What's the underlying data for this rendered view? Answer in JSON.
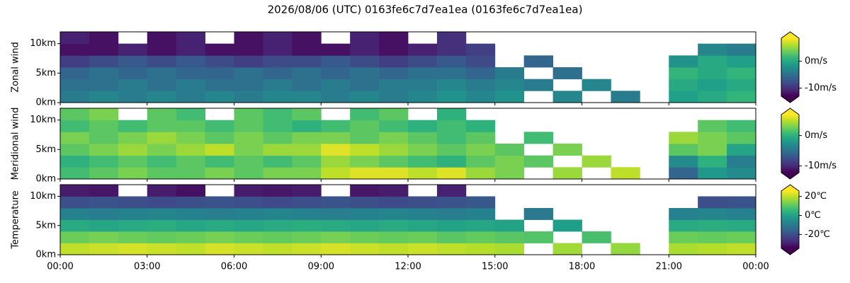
{
  "title": "2026/08/06 (UTC) 0163fe6c7d7ea1ea (0163fe6c7d7ea1ea)",
  "x": [
    0.5,
    1.5,
    2.5,
    3.5,
    4.5,
    5.5,
    6.5,
    7.5,
    8.5,
    9.5,
    10.5,
    11.5,
    12.5,
    13.5,
    14.5,
    15.5,
    16.5,
    17.5,
    18.5,
    19.5,
    20.5,
    21.5,
    22.5,
    23.5
  ],
  "xlim": [
    0,
    24
  ],
  "xticks": [
    {
      "value": 0,
      "label": "00:00"
    },
    {
      "value": 3,
      "label": "03:00"
    },
    {
      "value": 6,
      "label": "06:00"
    },
    {
      "value": 9,
      "label": "09:00"
    },
    {
      "value": 12,
      "label": "12:00"
    },
    {
      "value": 15,
      "label": "15:00"
    },
    {
      "value": 18,
      "label": "18:00"
    },
    {
      "value": 21,
      "label": "21:00"
    },
    {
      "value": 24,
      "label": "00:00"
    }
  ],
  "chart_data": [
    {
      "type": "heatmap",
      "ylabel": "Zonal wind",
      "colormap": "viridis",
      "y": [
        1,
        3,
        5,
        7,
        9,
        11
      ],
      "ylim": [
        0,
        12
      ],
      "yticks": [
        {
          "value": 0,
          "label": "0km"
        },
        {
          "value": 5,
          "label": "5km"
        },
        {
          "value": 10,
          "label": "10km"
        }
      ],
      "clim": [
        -13,
        8.5
      ],
      "cticks": [
        {
          "value": 0,
          "label": "0m/s"
        },
        {
          "value": -10,
          "label": "-10m/s"
        }
      ],
      "values": [
        [
          -4,
          -3,
          -4,
          -3,
          -4,
          -3,
          -4,
          -3,
          -3,
          -4,
          -3,
          -4,
          -3,
          -2,
          -3,
          -2,
          null,
          -3,
          null,
          -4,
          null,
          -1,
          0,
          1
        ],
        [
          -5,
          -5,
          -4,
          -5,
          -4,
          -5,
          -5,
          -4,
          -5,
          -4,
          -5,
          -4,
          -4,
          -3,
          -4,
          -3,
          -4,
          null,
          -3,
          null,
          null,
          0,
          -1,
          0
        ],
        [
          -6,
          -5,
          -6,
          -5,
          -6,
          -6,
          -5,
          -6,
          -5,
          -6,
          -5,
          -6,
          -5,
          -5,
          -6,
          -4,
          null,
          -5,
          null,
          null,
          null,
          1,
          0,
          1
        ],
        [
          -9,
          -8,
          -7,
          -8,
          -7,
          -8,
          -9,
          -8,
          -8,
          -7,
          -8,
          -9,
          -8,
          -7,
          -8,
          null,
          -6,
          null,
          null,
          null,
          null,
          -2,
          0,
          -1
        ],
        [
          -12,
          -12,
          -11,
          -12,
          -11,
          -12,
          -12,
          -11,
          -12,
          -12,
          -11,
          -12,
          -11,
          -10,
          -9,
          null,
          null,
          null,
          null,
          null,
          null,
          null,
          -3,
          -4
        ],
        [
          -11,
          -12,
          null,
          -12,
          -11,
          null,
          -12,
          -11,
          -12,
          null,
          -11,
          -12,
          null,
          -10,
          null,
          null,
          null,
          null,
          null,
          null,
          null,
          null,
          null,
          null
        ]
      ]
    },
    {
      "type": "heatmap",
      "ylabel": "Meridional wind",
      "colormap": "viridis",
      "y": [
        1,
        3,
        5,
        7,
        9,
        11
      ],
      "ylim": [
        0,
        12
      ],
      "yticks": [
        {
          "value": 0,
          "label": "0km"
        },
        {
          "value": 5,
          "label": "5km"
        },
        {
          "value": 10,
          "label": "10km"
        }
      ],
      "clim": [
        -12.2,
        6.9
      ],
      "cticks": [
        {
          "value": 0,
          "label": "0m/s"
        },
        {
          "value": -10,
          "label": "-10m/s"
        }
      ],
      "values": [
        [
          1,
          2,
          3,
          2,
          2,
          3,
          2,
          3,
          3,
          5,
          6,
          6,
          5,
          6,
          4,
          3,
          null,
          4,
          null,
          5,
          null,
          -6,
          -2,
          -3
        ],
        [
          0,
          1,
          2,
          1,
          2,
          1,
          2,
          1,
          2,
          4,
          3,
          2,
          1,
          0,
          2,
          3,
          2,
          null,
          4,
          null,
          null,
          -3,
          0,
          -4
        ],
        [
          2,
          3,
          4,
          3,
          4,
          5,
          3,
          4,
          4,
          6,
          5,
          4,
          3,
          2,
          3,
          2,
          null,
          3,
          null,
          null,
          null,
          2,
          3,
          -1
        ],
        [
          3,
          2,
          3,
          4,
          3,
          2,
          3,
          2,
          3,
          3,
          2,
          3,
          2,
          1,
          2,
          null,
          1,
          null,
          null,
          null,
          null,
          4,
          3,
          2
        ],
        [
          1,
          2,
          1,
          2,
          2,
          1,
          2,
          1,
          0,
          1,
          2,
          1,
          0,
          1,
          0,
          null,
          null,
          null,
          null,
          null,
          null,
          null,
          2,
          1
        ],
        [
          2,
          3,
          null,
          2,
          1,
          null,
          2,
          1,
          2,
          null,
          1,
          2,
          null,
          0,
          null,
          null,
          null,
          null,
          null,
          null,
          null,
          null,
          null,
          null
        ]
      ]
    },
    {
      "type": "heatmap",
      "ylabel": "Temperature",
      "colormap": "viridis",
      "y": [
        1,
        3,
        5,
        7,
        9,
        11
      ],
      "ylim": [
        0,
        12
      ],
      "yticks": [
        {
          "value": 0,
          "label": "0km"
        },
        {
          "value": 5,
          "label": "5km"
        },
        {
          "value": 10,
          "label": "10km"
        }
      ],
      "clim": [
        -34.6,
        25.7
      ],
      "cticks": [
        {
          "value": 20,
          "label": "20℃"
        },
        {
          "value": 0,
          "label": "0℃"
        },
        {
          "value": -20,
          "label": "-20℃"
        }
      ],
      "values": [
        [
          20,
          21,
          22,
          21,
          20,
          22,
          21,
          20,
          21,
          22,
          21,
          20,
          21,
          20,
          19,
          18,
          null,
          17,
          null,
          16,
          null,
          18,
          19,
          20
        ],
        [
          12,
          13,
          12,
          11,
          12,
          13,
          12,
          11,
          12,
          13,
          12,
          11,
          12,
          10,
          11,
          10,
          9,
          null,
          8,
          null,
          null,
          12,
          11,
          12
        ],
        [
          2,
          1,
          2,
          3,
          1,
          2,
          1,
          2,
          3,
          2,
          1,
          2,
          1,
          0,
          1,
          0,
          null,
          -1,
          null,
          null,
          null,
          2,
          3,
          2
        ],
        [
          -8,
          -9,
          -8,
          -7,
          -8,
          -9,
          -8,
          -7,
          -8,
          -9,
          -8,
          -7,
          -8,
          -9,
          -8,
          null,
          -10,
          null,
          null,
          null,
          null,
          -8,
          -7,
          -8
        ],
        [
          -20,
          -19,
          -20,
          -21,
          -20,
          -19,
          -20,
          -21,
          -20,
          -19,
          -20,
          -21,
          -20,
          -19,
          -18,
          null,
          null,
          null,
          null,
          null,
          null,
          null,
          -20,
          -19
        ],
        [
          -30,
          -31,
          null,
          -30,
          -32,
          null,
          -30,
          -31,
          -30,
          null,
          -31,
          -30,
          null,
          -29,
          null,
          null,
          null,
          null,
          null,
          null,
          null,
          null,
          null,
          null
        ]
      ]
    }
  ]
}
